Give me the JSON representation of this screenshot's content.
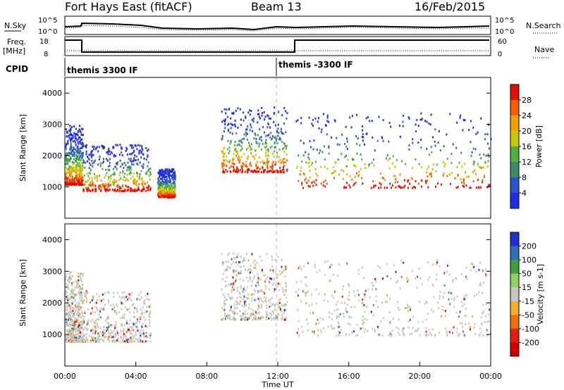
{
  "header": {
    "station": "Fort Hays East (fitACF)",
    "beam": "Beam 13",
    "date": "16/Feb/2015"
  },
  "top_panels": {
    "nsky_label": "N.Sky",
    "nsky_ticks": [
      "10^5",
      "10^0"
    ],
    "nsearch_label": "N.Search",
    "nsearch_ticks": [
      "10^5",
      "10^0"
    ],
    "freq_label": "Freq.",
    "freq_unit": "[MHz]",
    "freq_ticks": [
      "18",
      "8"
    ],
    "nave_label": "Nave",
    "nave_ticks": [
      "60",
      "0"
    ],
    "cpid_label": "CPID",
    "cpid_segments": [
      {
        "text": "themis 3300 IF",
        "start_hour": 0
      },
      {
        "text": "themis -3300 IF",
        "start_hour": 12.0
      }
    ]
  },
  "chart_data": [
    {
      "type": "heatmap",
      "name": "power",
      "ylabel": "Slant Range [km]",
      "yticks": [
        1000,
        2000,
        3000,
        4000
      ],
      "ylim": [
        0,
        4500
      ],
      "xlim": [
        0,
        24
      ],
      "colorbar_label": "Power [dB]",
      "colorbar_ticks": [
        4,
        8,
        12,
        16,
        20,
        24,
        28
      ],
      "colorbar_range": [
        0,
        32
      ],
      "colors": [
        "#1e2ee0",
        "#2a54c8",
        "#3c8c6c",
        "#50b040",
        "#c8c800",
        "#f0a000",
        "#f06000",
        "#e01000"
      ],
      "bands": [
        {
          "x0": 0,
          "x1": 1,
          "y0": 1100,
          "y1": 3000,
          "level": 0.4
        },
        {
          "x0": 1,
          "x1": 4.8,
          "y0": 900,
          "y1": 2400,
          "level": 0.5
        },
        {
          "x0": 5.2,
          "x1": 6.2,
          "y0": 700,
          "y1": 1600,
          "level": 0.25
        },
        {
          "x0": 8.8,
          "x1": 12.5,
          "y0": 1500,
          "y1": 3600,
          "level": 0.45
        },
        {
          "x0": 13,
          "x1": 24,
          "y0": 1000,
          "y1": 3400,
          "level": 0.5
        }
      ]
    },
    {
      "type": "heatmap",
      "name": "velocity",
      "ylabel": "Slant Range [km]",
      "yticks": [
        1000,
        2000,
        3000,
        4000
      ],
      "ylim": [
        0,
        4500
      ],
      "xlim": [
        0,
        24
      ],
      "xticks": [
        "00:00",
        "04:00",
        "08:00",
        "12:00",
        "16:00",
        "20:00",
        "00:00"
      ],
      "xtick_hours": [
        0,
        4,
        8,
        12,
        16,
        20,
        24
      ],
      "xlabel": "Time UT",
      "colorbar_label": "Velocity [m s-1]",
      "colorbar_ticks": [
        200,
        100,
        50,
        15,
        -15,
        -50,
        -100,
        -200
      ],
      "colorbar_range": [
        -250,
        250
      ],
      "colors": [
        "#2030d0",
        "#3070b0",
        "#40a040",
        "#90d060",
        "#c8c8c0",
        "#f0b030",
        "#f07010",
        "#e02010",
        "#d00000"
      ],
      "bands": [
        {
          "x0": 0,
          "x1": 1,
          "y0": 800,
          "y1": 3000,
          "level": 0.5
        },
        {
          "x0": 1,
          "x1": 4.8,
          "y0": 800,
          "y1": 2400,
          "level": 0.5
        },
        {
          "x0": 8.8,
          "x1": 12.5,
          "y0": 1500,
          "y1": 3600,
          "level": 0.5
        },
        {
          "x0": 13,
          "x1": 24,
          "y0": 1000,
          "y1": 3400,
          "level": 0.5
        }
      ]
    }
  ]
}
